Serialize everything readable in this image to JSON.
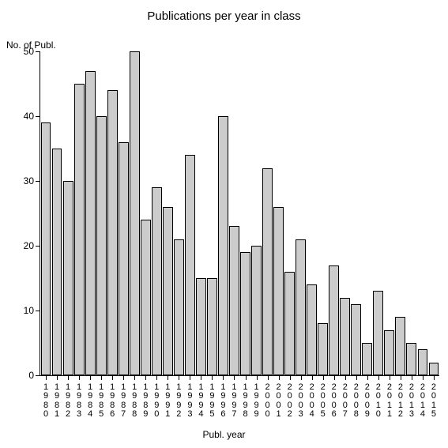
{
  "chart": {
    "type": "bar",
    "title": "Publications per year in class",
    "title_fontsize": 15,
    "y_axis_label": "No. of Publ.",
    "x_axis_label": "Publ. year",
    "label_fontsize": 12,
    "tick_fontsize": 12,
    "background_color": "#ffffff",
    "axis_color": "#000000",
    "bar_fill_color": "#cccccc",
    "bar_border_color": "#000000",
    "bar_width_ratio": 0.92,
    "ylim": [
      0,
      50
    ],
    "ytick_step": 10,
    "categories": [
      "1980",
      "1981",
      "1982",
      "1983",
      "1984",
      "1985",
      "1986",
      "1987",
      "1988",
      "1989",
      "1990",
      "1991",
      "1992",
      "1993",
      "1994",
      "1995",
      "1996",
      "1997",
      "1998",
      "1999",
      "2000",
      "2001",
      "2002",
      "2003",
      "2004",
      "2005",
      "2006",
      "2007",
      "2008",
      "2009",
      "2010",
      "2011",
      "2012",
      "2013",
      "2014",
      "2015"
    ],
    "values": [
      39,
      35,
      30,
      45,
      47,
      40,
      44,
      36,
      50,
      24,
      29,
      26,
      21,
      34,
      15,
      15,
      40,
      23,
      19,
      20,
      32,
      26,
      16,
      21,
      14,
      8,
      17,
      12,
      11,
      5,
      13,
      7,
      9,
      5,
      4,
      2
    ]
  }
}
